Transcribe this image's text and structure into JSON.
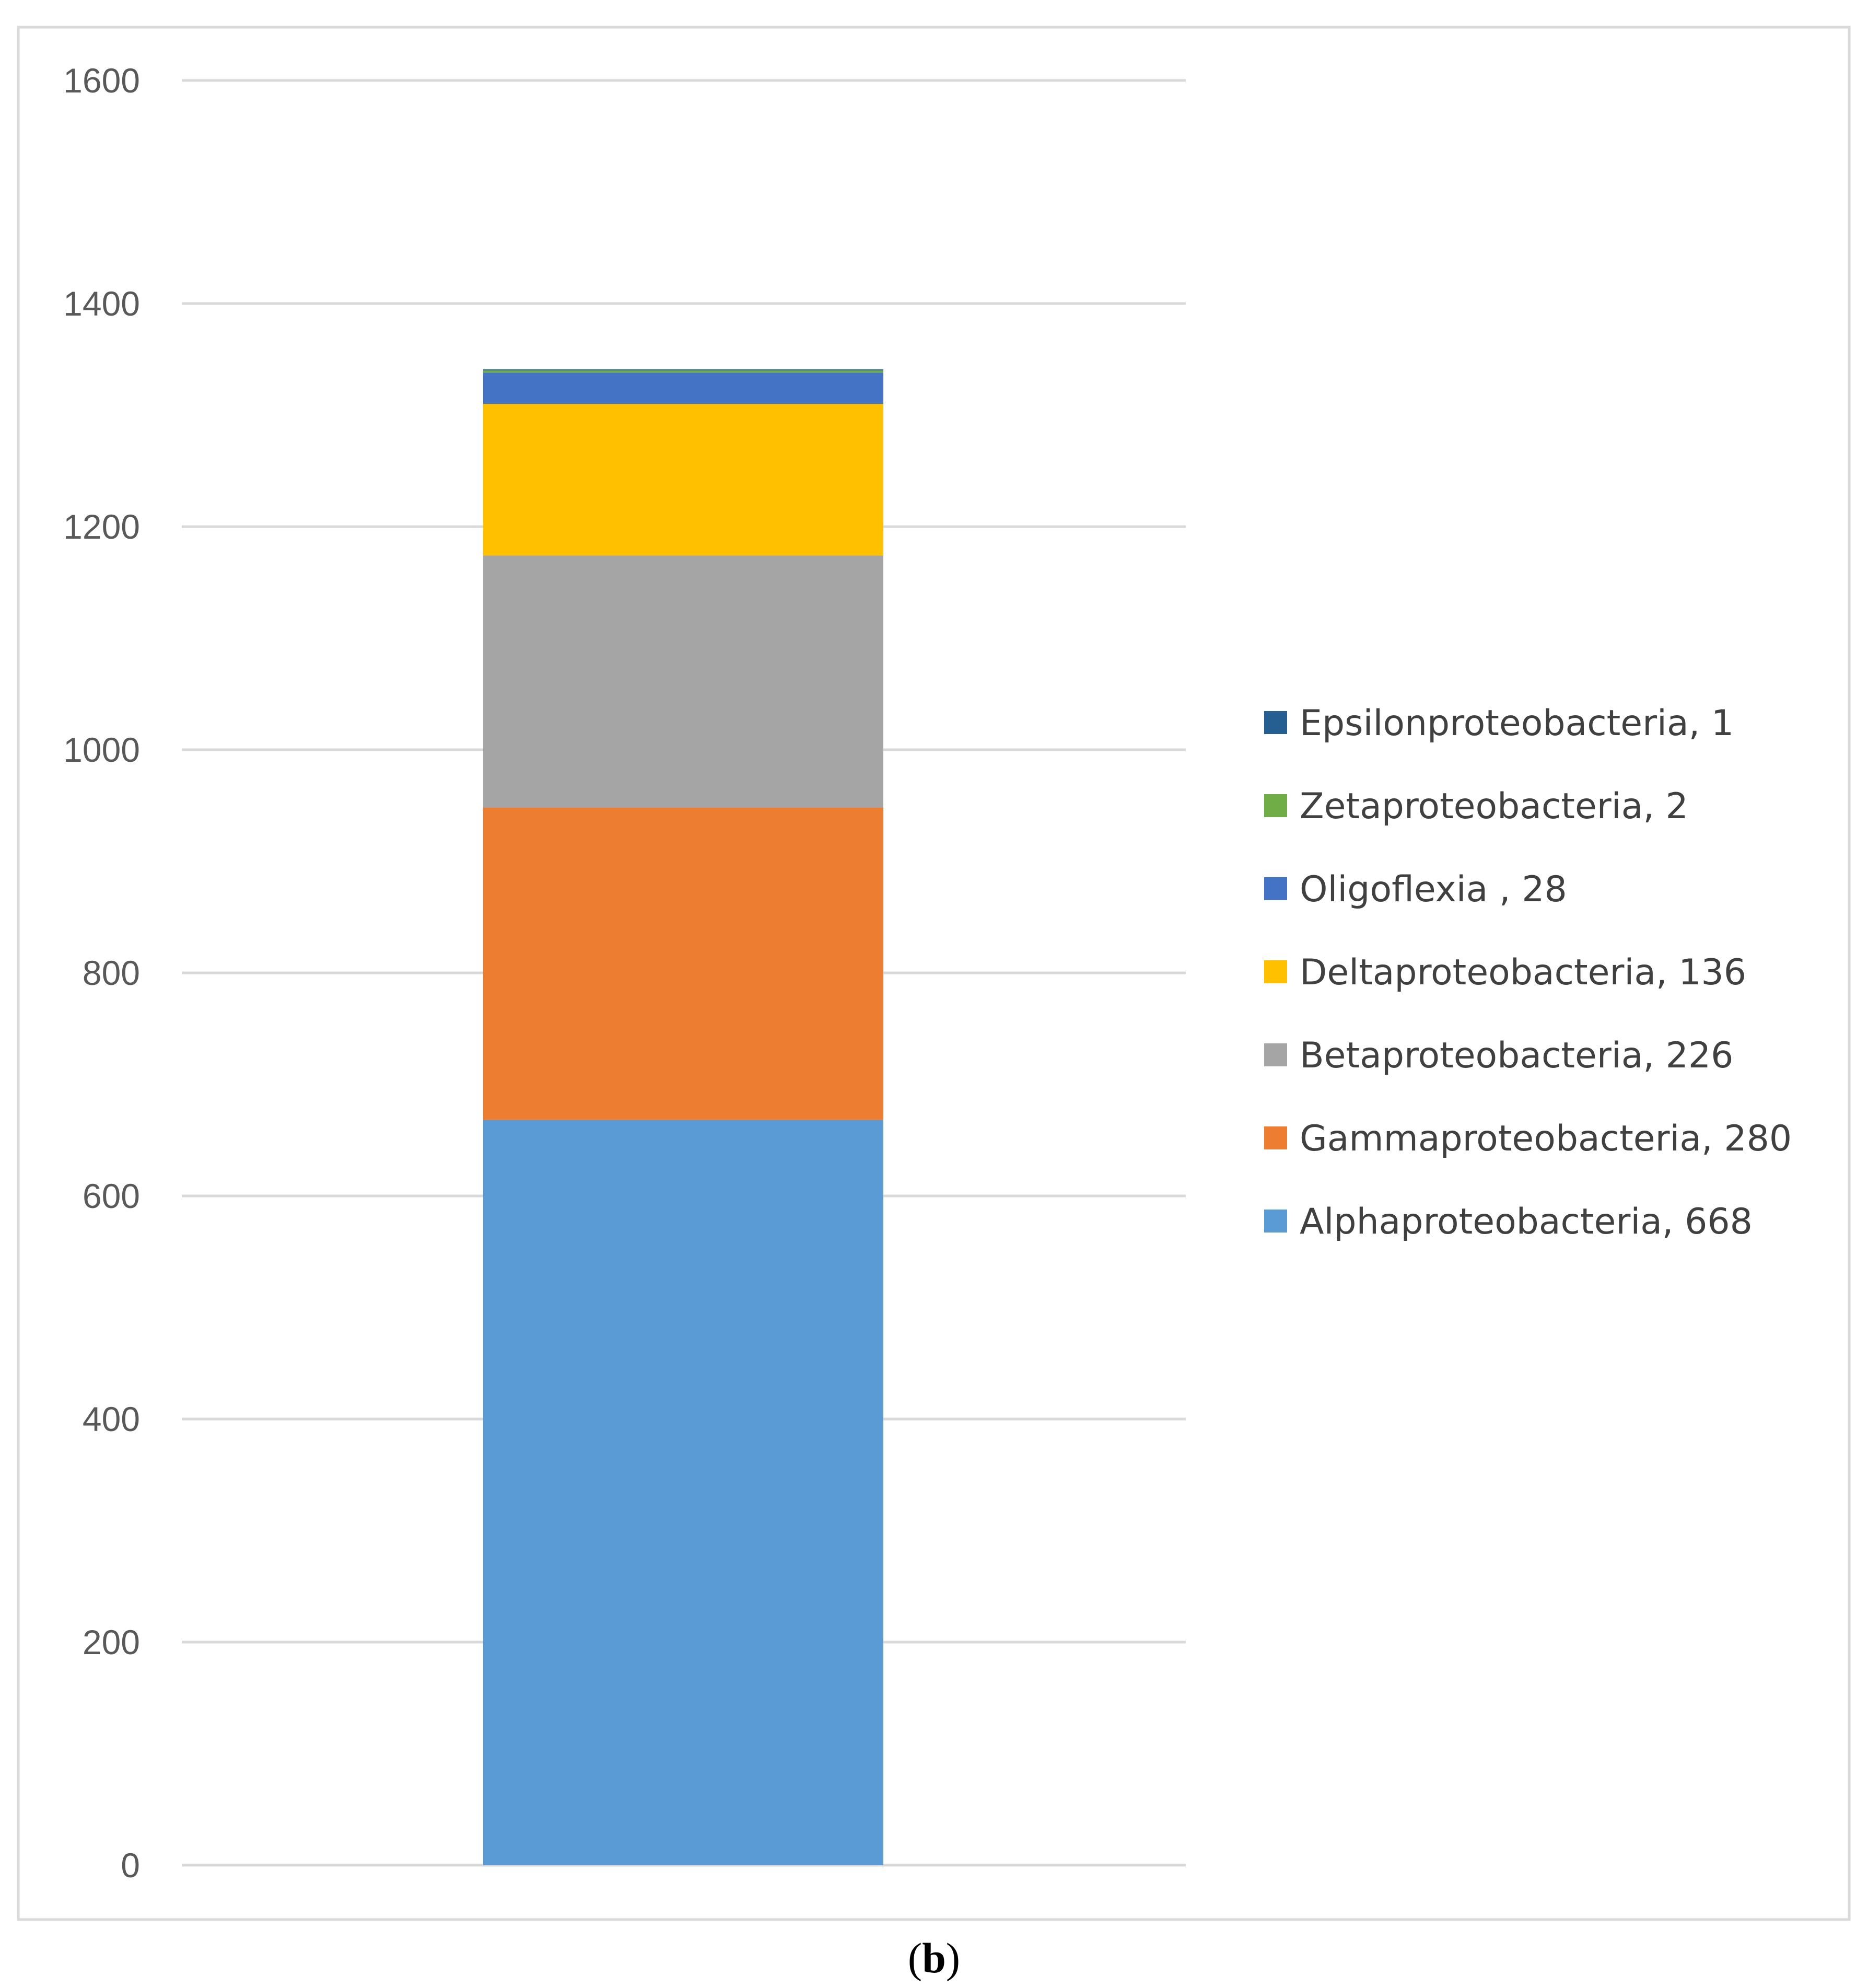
{
  "chart_data": {
    "type": "bar",
    "stacked": true,
    "categories": [
      ""
    ],
    "ylim": [
      0,
      1600
    ],
    "yticks": [
      0,
      200,
      400,
      600,
      800,
      1000,
      1200,
      1400,
      1600
    ],
    "grid": true,
    "legend_position": "right",
    "series": [
      {
        "name": "Alphaproteobacteria",
        "value": 668,
        "label": "Alphaproteobacteria, 668",
        "color": "#5b9bd5"
      },
      {
        "name": "Gammaproteobacteria",
        "value": 280,
        "label": "Gammaproteobacteria, 280",
        "color": "#ed7d31"
      },
      {
        "name": "Betaproteobacteria",
        "value": 226,
        "label": "Betaproteobacteria, 226",
        "color": "#a5a5a5"
      },
      {
        "name": "Deltaproteobacteria",
        "value": 136,
        "label": "Deltaproteobacteria, 136",
        "color": "#ffc000"
      },
      {
        "name": "Oligoflexia",
        "value": 28,
        "label": "Oligoflexia , 28",
        "color": "#4472c4"
      },
      {
        "name": "Zetaproteobacteria",
        "value": 2,
        "label": "Zetaproteobacteria, 2",
        "color": "#70ad47"
      },
      {
        "name": "Epsilonproteobacteria",
        "value": 1,
        "label": "Epsilonproteobacteria, 1",
        "color": "#255e91"
      }
    ],
    "title": "",
    "xlabel": "",
    "ylabel": ""
  },
  "caption": {
    "open": "(",
    "letter": "b",
    "close": ")"
  }
}
